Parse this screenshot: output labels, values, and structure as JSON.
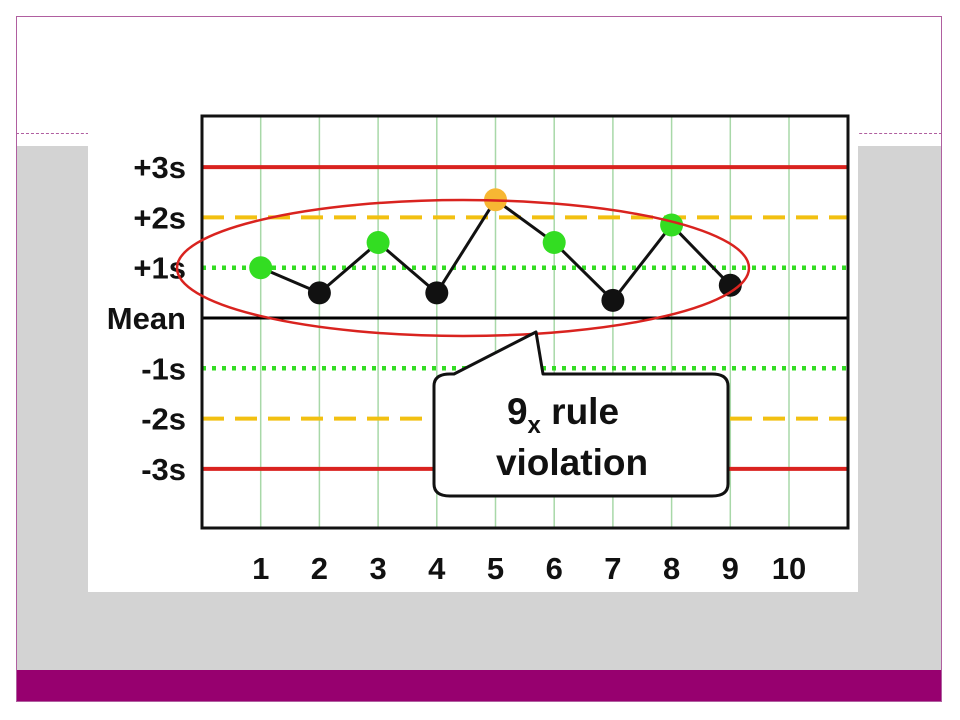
{
  "chart_data": {
    "type": "line",
    "title": "",
    "xlabel": "",
    "ylabel": "",
    "x_tick_labels": [
      "1",
      "2",
      "3",
      "4",
      "5",
      "6",
      "7",
      "8",
      "9",
      "10"
    ],
    "y_tick_labels": [
      "+3s",
      "+2s",
      "+1s",
      "Mean",
      "-1s",
      "-2s",
      "-3s"
    ],
    "ylim": [
      -4,
      3
    ],
    "xlim": [
      0,
      10.2
    ],
    "grid": true,
    "reference_lines": [
      {
        "label": "+3s",
        "value": 3,
        "style": "solid",
        "color": "#d9231f"
      },
      {
        "label": "+2s",
        "value": 2,
        "style": "dashed",
        "color": "#f2c011"
      },
      {
        "label": "+1s",
        "value": 1,
        "style": "dotted",
        "color": "#33dd22"
      },
      {
        "label": "Mean",
        "value": 0,
        "style": "solid",
        "color": "#000000"
      },
      {
        "label": "-1s",
        "value": -1,
        "style": "dotted",
        "color": "#33dd22"
      },
      {
        "label": "-2s",
        "value": -2,
        "style": "dashed",
        "color": "#f2c011"
      },
      {
        "label": "-3s",
        "value": -3,
        "style": "solid",
        "color": "#d9231f"
      }
    ],
    "series": [
      {
        "x": [
          1,
          2,
          3,
          4,
          5,
          6,
          7,
          8,
          9
        ],
        "values": [
          1.0,
          0.5,
          1.5,
          0.5,
          2.35,
          1.5,
          0.35,
          1.85,
          0.65
        ],
        "point_colors": [
          "#33dd22",
          "#111111",
          "#33dd22",
          "#111111",
          "#f7b733",
          "#33dd22",
          "#111111",
          "#33dd22",
          "#111111"
        ]
      }
    ],
    "annotations": [
      {
        "type": "ellipse",
        "encloses_points": [
          1,
          9
        ],
        "color": "#d9231f"
      },
      {
        "type": "callout",
        "main": "9",
        "subscript": "x",
        "text_line1": " rule",
        "text_line2": "violation"
      }
    ]
  },
  "colors": {
    "frame_border": "#b05fa0",
    "footer_bar": "#97006f",
    "content_band": "#d3d3d3",
    "grid_line": "#a8d8a8"
  }
}
